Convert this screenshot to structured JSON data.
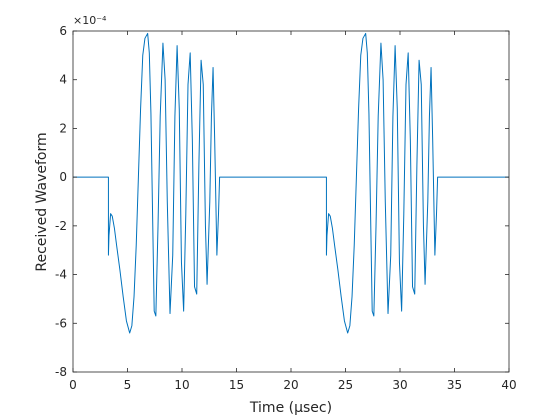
{
  "chart_data": {
    "type": "line",
    "xlabel": "Time (μsec)",
    "ylabel": "Received Waveform",
    "exponent_label": "×10⁻⁴",
    "xlim": [
      0,
      40
    ],
    "ylim": [
      -8,
      6
    ],
    "x_ticks": [
      0,
      5,
      10,
      15,
      20,
      25,
      30,
      35,
      40
    ],
    "y_ticks": [
      -8,
      -6,
      -4,
      -2,
      0,
      2,
      4,
      6
    ],
    "y_unit_scale": "1e-4",
    "grid": false,
    "line_color": "#0072BD",
    "axis_color": "#262626",
    "series": [
      {
        "x": [
          0,
          3.25,
          3.25,
          3.3,
          3.45,
          3.6,
          3.8,
          4.0,
          4.3,
          4.6,
          4.9,
          5.2,
          5.4,
          5.6,
          5.8,
          6.0,
          6.2,
          6.4,
          6.6,
          6.85,
          7.0,
          7.15,
          7.3,
          7.45,
          7.6,
          7.8,
          8.0,
          8.25,
          8.45,
          8.65,
          8.9,
          9.15,
          9.35,
          9.55,
          9.75,
          9.95,
          10.15,
          10.35,
          10.55,
          10.75,
          10.95,
          11.15,
          11.35,
          11.55,
          11.75,
          11.95,
          12.15,
          12.3,
          12.55,
          12.7,
          12.85,
          13.0,
          13.2,
          13.35,
          13.45,
          23.25,
          23.25,
          23.3,
          23.45,
          23.6,
          23.8,
          24.0,
          24.3,
          24.6,
          24.9,
          25.2,
          25.4,
          25.6,
          25.8,
          26.0,
          26.2,
          26.4,
          26.6,
          26.85,
          27.0,
          27.15,
          27.3,
          27.45,
          27.6,
          27.8,
          28.0,
          28.25,
          28.45,
          28.65,
          28.9,
          29.15,
          29.35,
          29.55,
          29.75,
          29.95,
          30.15,
          30.35,
          30.55,
          30.75,
          30.95,
          31.15,
          31.35,
          31.55,
          31.75,
          31.95,
          32.15,
          32.3,
          32.55,
          32.7,
          32.85,
          33.0,
          33.2,
          33.35,
          33.45,
          40
        ],
        "y": [
          0,
          0,
          -3.2,
          -2.4,
          -1.5,
          -1.6,
          -2.1,
          -2.8,
          -3.8,
          -4.9,
          -5.9,
          -6.4,
          -6.1,
          -4.9,
          -2.8,
          0,
          2.8,
          5.0,
          5.7,
          5.9,
          5.1,
          2.6,
          -1.5,
          -5.5,
          -5.7,
          -2.0,
          2.5,
          5.5,
          4.0,
          -1.0,
          -5.6,
          -3.2,
          2.5,
          5.4,
          2.8,
          -3.5,
          -5.5,
          -1.5,
          3.8,
          5.1,
          1.5,
          -4.5,
          -4.8,
          0.5,
          4.8,
          3.8,
          -2.0,
          -4.4,
          -1.0,
          2.5,
          4.5,
          1.5,
          -3.2,
          -1.5,
          0,
          0,
          -3.2,
          -2.4,
          -1.5,
          -1.6,
          -2.1,
          -2.8,
          -3.8,
          -4.9,
          -5.9,
          -6.4,
          -6.1,
          -4.9,
          -2.8,
          0,
          2.8,
          5.0,
          5.7,
          5.9,
          5.1,
          2.6,
          -1.5,
          -5.5,
          -5.7,
          -2.0,
          2.5,
          5.5,
          4.0,
          -1.0,
          -5.6,
          -3.2,
          2.5,
          5.4,
          2.8,
          -3.5,
          -5.5,
          -1.5,
          3.8,
          5.1,
          1.5,
          -4.5,
          -4.8,
          0.5,
          4.8,
          3.8,
          -2.0,
          -4.4,
          -1.0,
          2.5,
          4.5,
          1.5,
          -3.2,
          -1.5,
          0,
          0
        ]
      }
    ]
  }
}
